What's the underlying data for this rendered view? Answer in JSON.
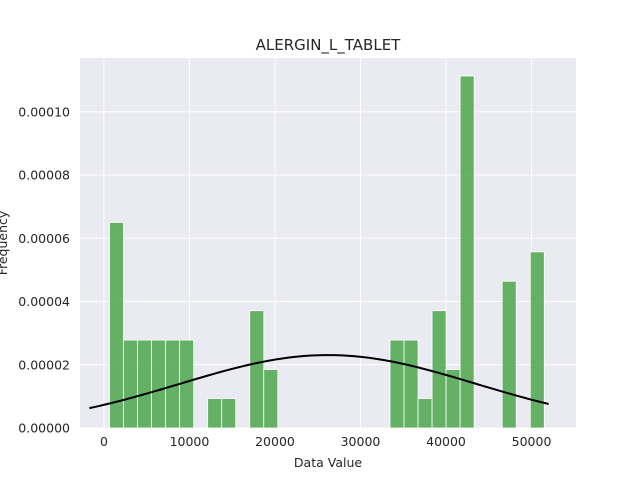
{
  "chart_data": {
    "type": "bar",
    "title": "ALERGIN_L_TABLET",
    "xlabel": "Data Value",
    "ylabel": "Frequency",
    "xlim": [
      -2800,
      55200
    ],
    "ylim": [
      0,
      0.000117
    ],
    "grid": true,
    "xticks": [
      0,
      10000,
      20000,
      30000,
      40000,
      50000
    ],
    "xtick_labels": [
      "0",
      "10000",
      "20000",
      "30000",
      "40000",
      "50000"
    ],
    "yticks": [
      0,
      2e-05,
      4e-05,
      6e-05,
      8e-05,
      0.0001
    ],
    "ytick_labels": [
      "0.00000",
      "0.00002",
      "0.00004",
      "0.00006",
      "0.00008",
      "0.00010"
    ],
    "bar_color": "#4ca64c",
    "curve_color": "#000000",
    "background_color": "#eaeaf2",
    "bins": {
      "start": 650,
      "width": 1640,
      "heights": [
        6.5e-05,
        2.78e-05,
        2.78e-05,
        2.78e-05,
        2.78e-05,
        2.78e-05,
        0,
        9.3e-06,
        9.3e-06,
        0,
        3.71e-05,
        1.85e-05,
        0,
        0,
        0,
        0,
        0,
        0,
        0,
        0,
        2.78e-05,
        2.78e-05,
        9.3e-06,
        3.71e-05,
        1.85e-05,
        0.0001113,
        0,
        0,
        4.64e-05,
        0,
        5.57e-05
      ]
    },
    "density_curve": {
      "mean": 26200,
      "std": 17300,
      "x_range": [
        -1700,
        52000
      ]
    }
  }
}
